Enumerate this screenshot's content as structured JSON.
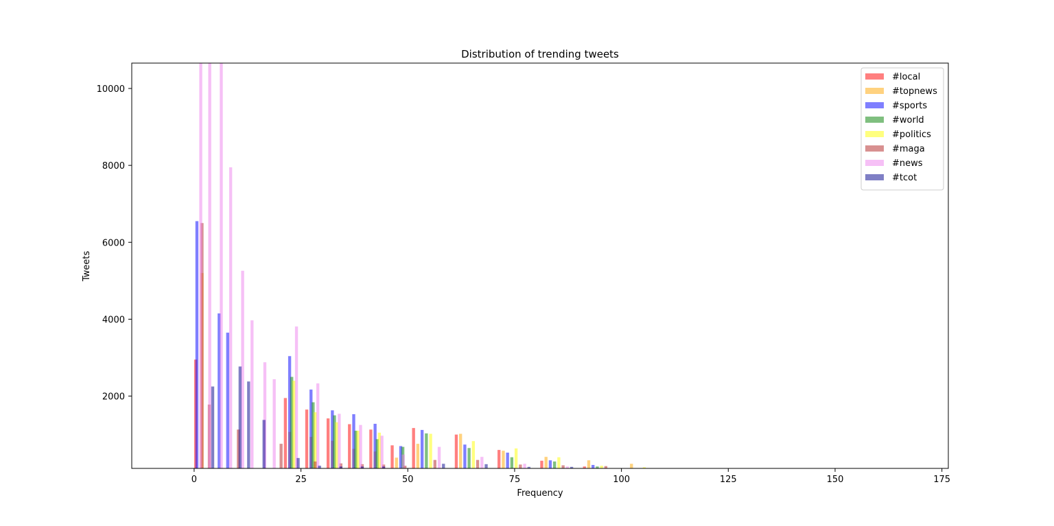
{
  "chart_data": {
    "type": "bar",
    "title": "Distribution of trending tweets",
    "xlabel": "Frequency",
    "ylabel": "Tweets",
    "xlim": [
      -14.6,
      176.5
    ],
    "ylim": [
      120,
      10660
    ],
    "xticks": [
      0,
      25,
      50,
      75,
      100,
      125,
      150,
      175
    ],
    "yticks": [
      2000,
      4000,
      6000,
      8000,
      10000
    ],
    "legend": "top-right",
    "grid": false,
    "series": [
      {
        "name": "#local",
        "color": "#ff0000",
        "bin_left": [
          0,
          21,
          26,
          31,
          36,
          41,
          46,
          51,
          61,
          71,
          81,
          91
        ],
        "bin_width": 0.7,
        "values": [
          2950,
          1950,
          1650,
          1420,
          1270,
          1130,
          720,
          1170,
          1000,
          600,
          320,
          170
        ]
      },
      {
        "name": "#topnews",
        "color": "#ffa500",
        "bin_left": [
          1.5,
          22,
          27,
          32,
          37,
          42,
          47,
          52,
          62,
          72,
          82,
          92,
          102
        ],
        "bin_width": 0.7,
        "values": [
          5200,
          1070,
          940,
          840,
          630,
          560,
          400,
          760,
          1020,
          580,
          420,
          330,
          240
        ]
      },
      {
        "name": "#sports",
        "color": "#0000ff",
        "bin_left": [
          0.3,
          5.5,
          7.5,
          22,
          27,
          32,
          37,
          42,
          48,
          53,
          63,
          73,
          83,
          93
        ],
        "bin_width": 0.7,
        "values": [
          6550,
          4150,
          3650,
          3040,
          2170,
          1630,
          1530,
          1280,
          700,
          1120,
          740,
          530,
          330,
          210
        ]
      },
      {
        "name": "#world",
        "color": "#008000",
        "bin_left": [
          22.5,
          27.5,
          32.5,
          37.5,
          42.5,
          48.5,
          54,
          64,
          74,
          84,
          94
        ],
        "bin_width": 0.7,
        "values": [
          2500,
          1840,
          1500,
          1100,
          880,
          680,
          1030,
          650,
          410,
          300,
          170
        ]
      },
      {
        "name": "#politics",
        "color": "#ffff00",
        "bin_left": [
          23,
          28,
          33,
          38,
          43,
          55,
          65,
          75,
          85,
          95,
          105
        ],
        "bin_width": 0.7,
        "values": [
          2400,
          1580,
          1320,
          1100,
          1050,
          1020,
          830,
          640,
          410,
          190,
          150
        ]
      },
      {
        "name": "#maga",
        "color": "#b22222",
        "bin_left": [
          1.5,
          3.2,
          10,
          20,
          28,
          34,
          39,
          44,
          49,
          56,
          66,
          76,
          86,
          96
        ],
        "bin_width": 0.7,
        "values": [
          6500,
          1780,
          1130,
          760,
          300,
          250,
          230,
          220,
          190,
          340,
          340,
          220,
          200,
          180
        ]
      },
      {
        "name": "#news",
        "color": "#ee82ee",
        "bin_left": [
          1.2,
          3.3,
          6,
          8.2,
          11,
          13.2,
          16.2,
          18.4,
          23.6,
          28.6,
          33.6,
          38.6,
          43.6,
          48.6,
          57,
          67,
          77,
          87
        ],
        "bin_width": 0.7,
        "values": [
          10660,
          10660,
          10660,
          7950,
          5260,
          3970,
          2880,
          2440,
          3810,
          2330,
          1540,
          1250,
          970,
          480,
          680,
          420,
          240,
          170
        ]
      },
      {
        "name": "#tcot",
        "color": "#00008b",
        "bin_left": [
          4,
          10.4,
          12.4,
          16,
          24,
          29,
          34,
          39,
          44,
          58,
          68,
          78,
          88
        ],
        "bin_width": 0.7,
        "values": [
          2250,
          2770,
          2380,
          1380,
          390,
          190,
          170,
          170,
          170,
          240,
          230,
          160,
          160
        ]
      }
    ]
  }
}
